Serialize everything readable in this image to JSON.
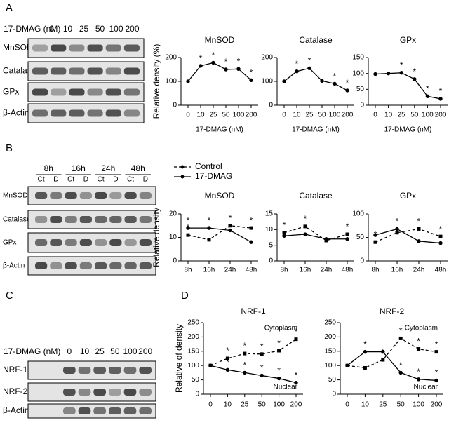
{
  "panel_labels": [
    "A",
    "B",
    "C",
    "D"
  ],
  "blots": [
    {
      "header_label": "17-DMAG (nM)",
      "lanes": [
        "0",
        "10",
        "25",
        "50",
        "100",
        "200"
      ],
      "rows": [
        "MnSOD",
        "Catalase",
        "GPx",
        "β-Actin"
      ]
    },
    {
      "groups": [
        "8h",
        "16h",
        "24h",
        "48h"
      ],
      "lanes": [
        "Ct",
        "D",
        "Ct",
        "D",
        "Ct",
        "D",
        "Ct",
        "D"
      ],
      "rows": [
        "MnSOD",
        "Catalase",
        "GPx",
        "β-Actin"
      ]
    },
    {
      "header_label": "17-DMAG (nM)",
      "lanes": [
        "0",
        "10",
        "25",
        "50",
        "100",
        "200"
      ],
      "rows": [
        "NRF-1",
        "NRF-2",
        "β-Actin"
      ]
    }
  ],
  "chart_data": [
    {
      "type": "line",
      "title": "MnSOD",
      "ylabel": "Relative density (%)",
      "xlabel": "17-DMAG (nM)",
      "categories": [
        "0",
        "10",
        "25",
        "50",
        "100",
        "200"
      ],
      "values": [
        100,
        165,
        178,
        150,
        152,
        105
      ],
      "stars": [
        null,
        "*",
        "*",
        "*",
        "*",
        "*"
      ],
      "color": "#000000",
      "ylim": [
        0,
        200
      ],
      "yticks": [
        0,
        100,
        200
      ]
    },
    {
      "type": "line",
      "title": "Catalase",
      "xlabel": "17-DMAG (nM)",
      "categories": [
        "0",
        "10",
        "25",
        "50",
        "100",
        "200"
      ],
      "values": [
        100,
        142,
        155,
        102,
        90,
        62
      ],
      "stars": [
        null,
        "*",
        "*",
        null,
        "*",
        "*"
      ],
      "color": "#000000",
      "ylim": [
        0,
        200
      ],
      "yticks": [
        0,
        100,
        200
      ]
    },
    {
      "type": "line",
      "title": "GPx",
      "xlabel": "17-DMAG (nM)",
      "categories": [
        "0",
        "10",
        "25",
        "50",
        "100",
        "200"
      ],
      "values": [
        98,
        100,
        102,
        82,
        28,
        20
      ],
      "stars": [
        null,
        null,
        "*",
        "*",
        "*",
        "*"
      ],
      "color": "#000000",
      "ylim": [
        0,
        150
      ],
      "yticks": [
        0,
        50,
        100,
        150
      ]
    },
    {
      "type": "line",
      "title": "MnSOD",
      "ylabel": "Relative density",
      "categories": [
        "8h",
        "16h",
        "24h",
        "48h"
      ],
      "legend": true,
      "series": [
        {
          "name": "Control",
          "color": "#000000",
          "dash": true,
          "values": [
            11,
            9,
            15,
            14
          ],
          "stars": [
            "*",
            null,
            "*",
            "*"
          ]
        },
        {
          "name": "17-DMAG",
          "color": "#000000",
          "dash": false,
          "values": [
            14,
            14,
            13,
            8
          ],
          "stars": [
            "*",
            "*",
            null,
            null
          ]
        }
      ],
      "ylim": [
        0,
        20
      ],
      "yticks": [
        0,
        10,
        20
      ]
    },
    {
      "type": "line",
      "title": "Catalase",
      "categories": [
        "8h",
        "16h",
        "24h",
        "48h"
      ],
      "series": [
        {
          "color": "#000000",
          "dash": true,
          "values": [
            9,
            11,
            6.5,
            8.5
          ],
          "stars": [
            "*",
            "*",
            null,
            "*"
          ]
        },
        {
          "color": "#000000",
          "dash": false,
          "values": [
            8,
            8.5,
            7,
            7
          ],
          "stars": [
            null,
            null,
            null,
            null
          ]
        }
      ],
      "ylim": [
        0,
        15
      ],
      "yticks": [
        0,
        5,
        10,
        15
      ]
    },
    {
      "type": "line",
      "title": "GPx",
      "categories": [
        "8h",
        "16h",
        "24h",
        "48h"
      ],
      "series": [
        {
          "color": "#000000",
          "dash": true,
          "values": [
            40,
            60,
            68,
            52
          ],
          "stars": [
            "*",
            null,
            "*",
            "*"
          ]
        },
        {
          "color": "#000000",
          "dash": false,
          "values": [
            55,
            68,
            42,
            38
          ],
          "stars": [
            null,
            "*",
            null,
            null
          ]
        }
      ],
      "ylim": [
        0,
        100
      ],
      "yticks": [
        0,
        50,
        100
      ]
    },
    {
      "type": "line",
      "title": "NRF-1",
      "ylabel": "Relative of density",
      "categories": [
        "0",
        "10",
        "25",
        "50",
        "100",
        "200"
      ],
      "series": [
        {
          "name": "Cytoplasm",
          "color": "#000000",
          "dash": true,
          "values": [
            100,
            125,
            142,
            140,
            152,
            192
          ],
          "stars": [
            null,
            "*",
            "*",
            "*",
            "*",
            "*"
          ]
        },
        {
          "name": "Nuclear",
          "color": "#000000",
          "dash": false,
          "values": [
            100,
            85,
            75,
            65,
            55,
            40
          ],
          "stars": [
            null,
            "*",
            "*",
            "*",
            "*",
            "*"
          ]
        }
      ],
      "ylim": [
        0,
        250
      ],
      "yticks": [
        0,
        50,
        100,
        150,
        200,
        250
      ]
    },
    {
      "type": "line",
      "title": "NRF-2",
      "categories": [
        "0",
        "10",
        "25",
        "50",
        "100",
        "200"
      ],
      "series": [
        {
          "name": "Cytoplasm",
          "color": "#000000",
          "dash": true,
          "values": [
            100,
            92,
            120,
            195,
            158,
            148
          ],
          "stars": [
            null,
            null,
            "*",
            "*",
            "*",
            "*"
          ]
        },
        {
          "name": "Nuclear",
          "color": "#000000",
          "dash": false,
          "values": [
            100,
            148,
            148,
            75,
            52,
            48
          ],
          "stars": [
            null,
            "*",
            null,
            "*",
            "*",
            "*"
          ]
        }
      ],
      "ylim": [
        0,
        250
      ],
      "yticks": [
        0,
        50,
        100,
        150,
        200,
        250
      ]
    }
  ]
}
